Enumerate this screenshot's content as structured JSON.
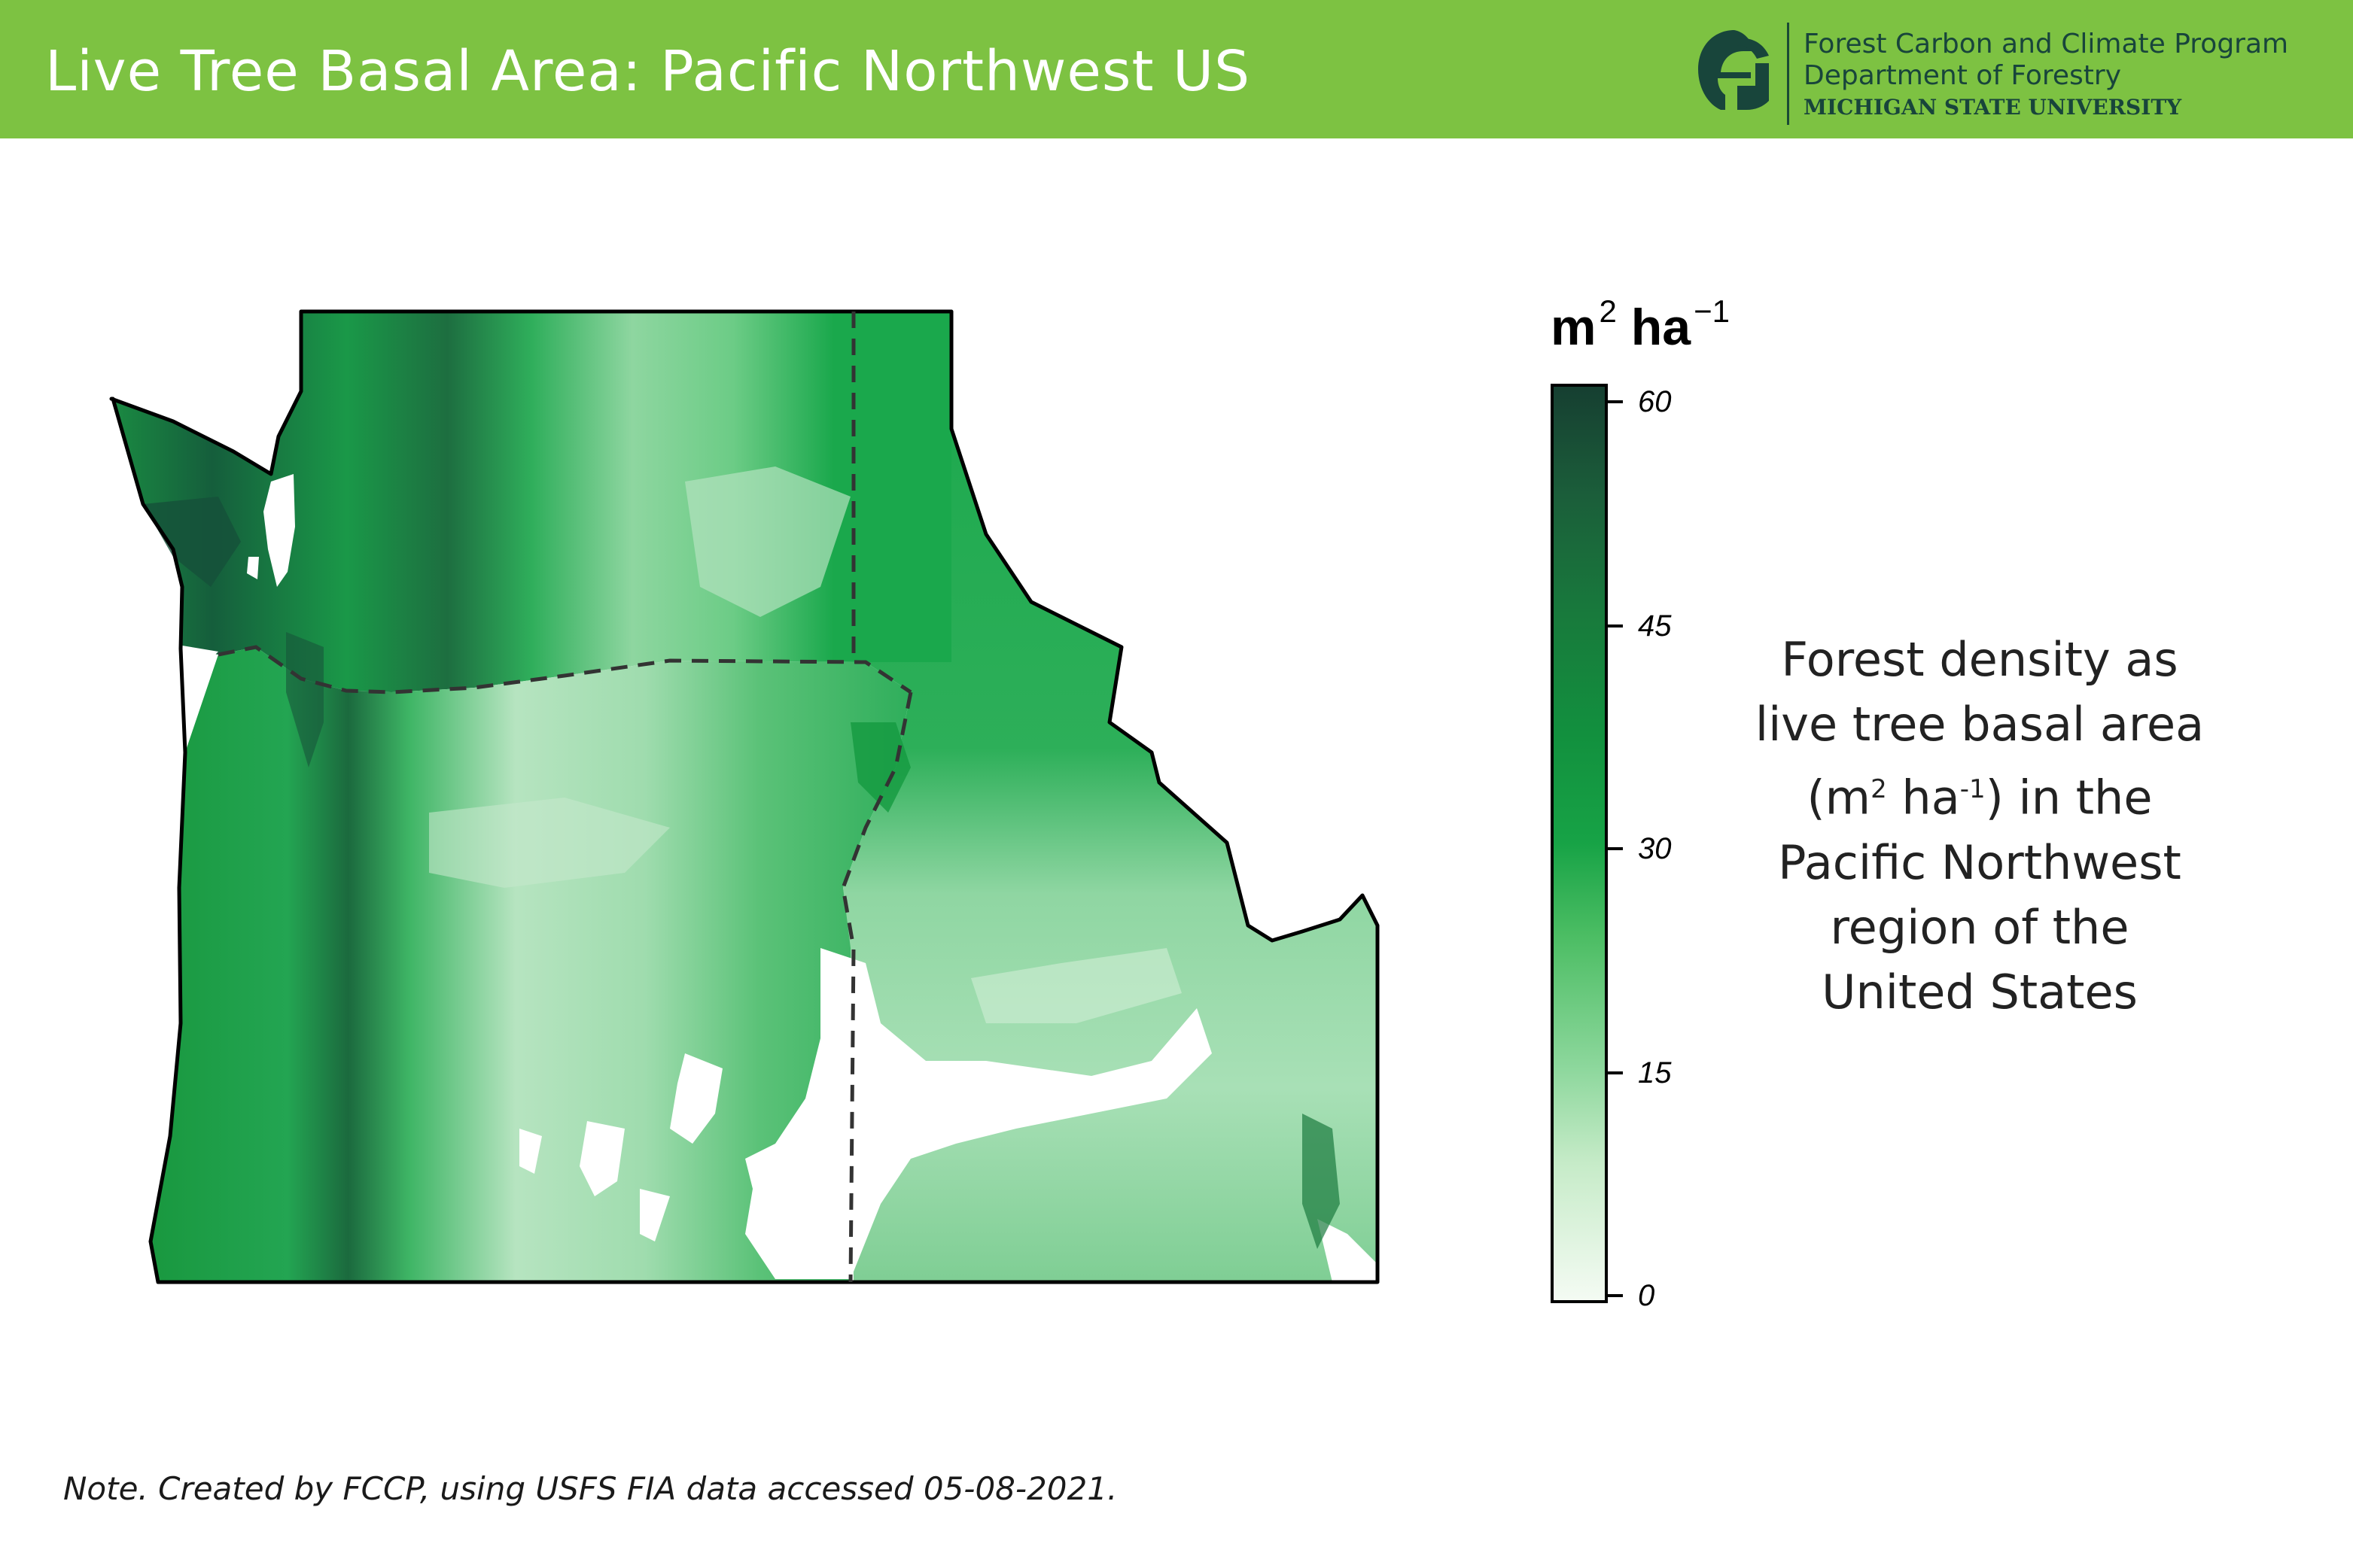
{
  "header": {
    "title": "Live Tree Basal Area: Pacific Northwest US",
    "org_line1": "Forest Carbon and Climate Program",
    "org_line2": "Department of Forestry",
    "org_line3": "MICHIGAN STATE UNIVERSITY",
    "logo_icon": "spartan-helmet-icon",
    "background_color": "#7dc242"
  },
  "legend": {
    "unit_base": "m",
    "unit_base_exp": "2",
    "unit_ha": "ha",
    "unit_ha_exp": "−1",
    "ticks": [
      "60",
      "45",
      "30",
      "15",
      "0"
    ],
    "range": [
      0,
      60
    ],
    "low_color": "#f4fbf3",
    "high_color": "#163f31"
  },
  "description": {
    "line1": "Forest density as",
    "line2": "live tree basal area",
    "line3_pre": "(m",
    "line3_sup1": "2",
    "line3_mid": " ha",
    "line3_sup2": "-1",
    "line3_post": ") in the",
    "line4": "Pacific Northwest",
    "line5": "region of the",
    "line6": "United States"
  },
  "note": "Note. Created by FCCP, using USFS FIA data accessed 05-08-2021."
}
